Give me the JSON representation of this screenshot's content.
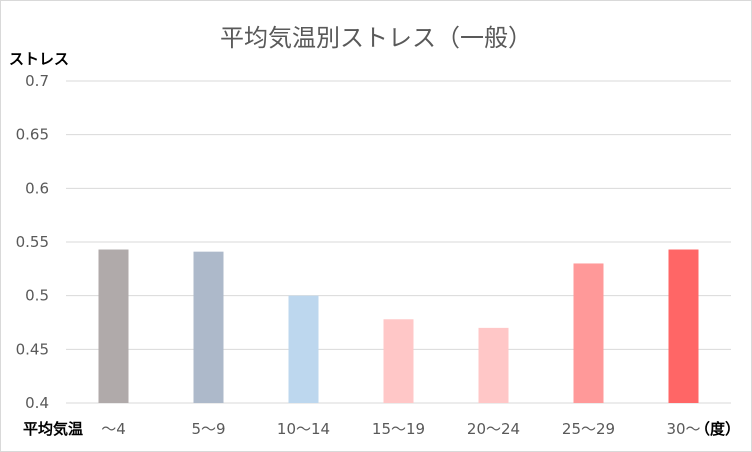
{
  "chart_data": {
    "type": "bar",
    "title": "平均気温別ストレス（一般）",
    "ylabel": "ストレス",
    "xlabel_left": "平均気温",
    "xlabel_right": "（度）",
    "ylim": [
      0.4,
      0.7
    ],
    "yticks": [
      "0.4",
      "0.45",
      "0.5",
      "0.55",
      "0.6",
      "0.65",
      "0.7"
    ],
    "categories": [
      "～4",
      "5～9",
      "10～14",
      "15～19",
      "20～24",
      "25～29",
      "30～"
    ],
    "values": [
      0.543,
      0.541,
      0.5,
      0.478,
      0.47,
      0.53,
      0.543
    ],
    "colors": [
      "#b0aaaa",
      "#adb9ca",
      "#bdd7ee",
      "#ffc7c7",
      "#ffc7c7",
      "#ff9999",
      "#ff6666"
    ],
    "grid": true,
    "legend": "none"
  }
}
